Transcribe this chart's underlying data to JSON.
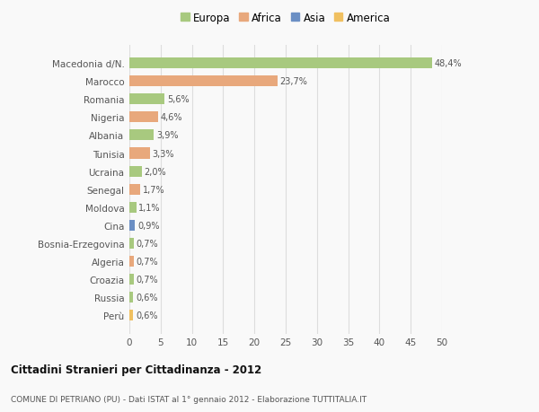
{
  "categories": [
    "Macedonia d/N.",
    "Marocco",
    "Romania",
    "Nigeria",
    "Albania",
    "Tunisia",
    "Ucraina",
    "Senegal",
    "Moldova",
    "Cina",
    "Bosnia-Erzegovina",
    "Algeria",
    "Croazia",
    "Russia",
    "Perù"
  ],
  "values": [
    48.4,
    23.7,
    5.6,
    4.6,
    3.9,
    3.3,
    2.0,
    1.7,
    1.1,
    0.9,
    0.7,
    0.7,
    0.7,
    0.6,
    0.6
  ],
  "labels": [
    "48,4%",
    "23,7%",
    "5,6%",
    "4,6%",
    "3,9%",
    "3,3%",
    "2,0%",
    "1,7%",
    "1,1%",
    "0,9%",
    "0,7%",
    "0,7%",
    "0,7%",
    "0,6%",
    "0,6%"
  ],
  "colors": [
    "#a8c97f",
    "#e8a87c",
    "#a8c97f",
    "#e8a87c",
    "#a8c97f",
    "#e8a87c",
    "#a8c97f",
    "#e8a87c",
    "#a8c97f",
    "#6b8fc4",
    "#a8c97f",
    "#e8a87c",
    "#a8c97f",
    "#a8c97f",
    "#f0c060"
  ],
  "legend_labels": [
    "Europa",
    "Africa",
    "Asia",
    "America"
  ],
  "legend_colors": [
    "#a8c97f",
    "#e8a87c",
    "#6b8fc4",
    "#f0c060"
  ],
  "title": "Cittadini Stranieri per Cittadinanza - 2012",
  "subtitle": "COMUNE DI PETRIANO (PU) - Dati ISTAT al 1° gennaio 2012 - Elaborazione TUTTITALIA.IT",
  "xlim": [
    0,
    50
  ],
  "xticks": [
    0,
    5,
    10,
    15,
    20,
    25,
    30,
    35,
    40,
    45,
    50
  ],
  "bg_color": "#f9f9f9",
  "grid_color": "#dddddd",
  "bar_height": 0.6
}
